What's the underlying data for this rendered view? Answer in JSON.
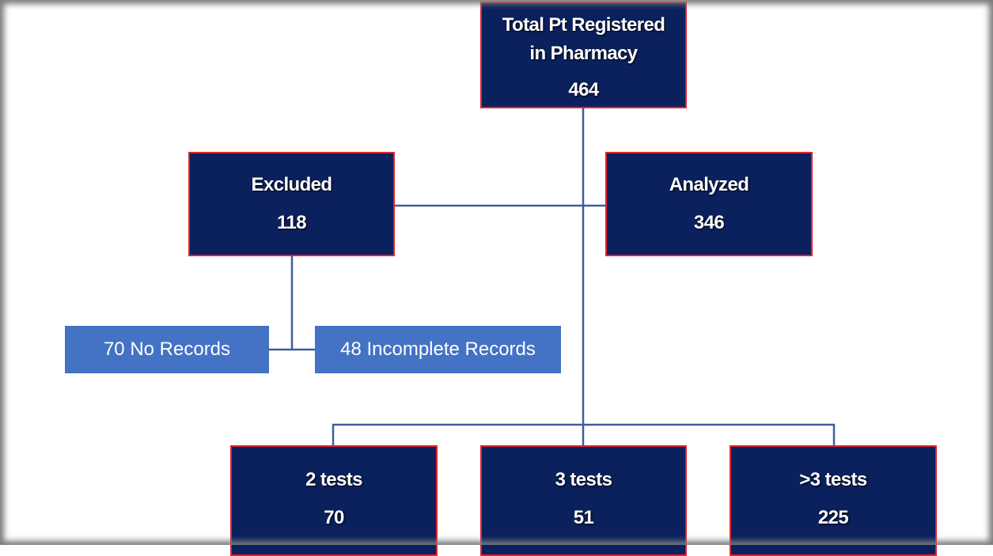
{
  "nodes": [
    {
      "label": [
        "Total Pt Registered",
        "in Pharmacy"
      ],
      "count": 464
    },
    {
      "label": "Excluded",
      "count": 118
    },
    {
      "label": "Analyzed",
      "count": 346
    },
    {
      "label": "70 No Records"
    },
    {
      "label": "48 Incomplete Records"
    },
    {
      "label": "2 tests",
      "count": 70
    },
    {
      "label": "3 tests",
      "count": 51
    },
    {
      "label": ">3 tests",
      "count": 225
    }
  ]
}
